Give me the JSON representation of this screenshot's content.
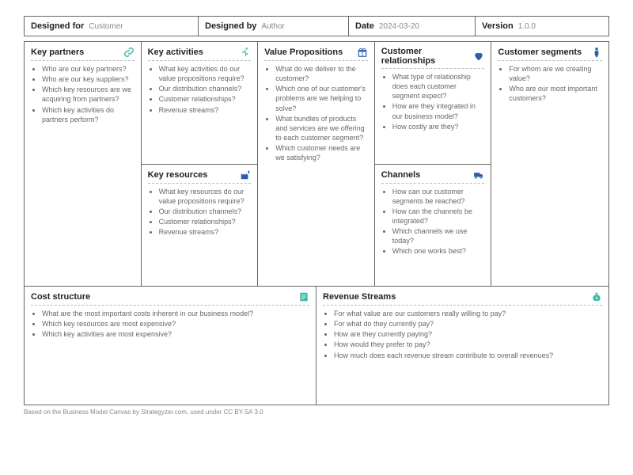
{
  "header": {
    "designed_for_label": "Designed for",
    "designed_for_value": "Customer",
    "designed_by_label": "Designed by",
    "designed_by_value": "Author",
    "date_label": "Date",
    "date_value": "2024-03-20",
    "version_label": "Version",
    "version_value": "1.0.0"
  },
  "colors": {
    "teal": "#3bb8a7",
    "blue": "#2a5fa8",
    "text": "#333333",
    "muted": "#666666",
    "border": "#666666"
  },
  "cells": {
    "key_partners": {
      "title": "Key partners",
      "icon_color": "#3bb8a7",
      "items": [
        "Who are our key partners?",
        "Who are our key suppliers?",
        "Which key resources are we acquiring from partners?",
        "Which key activities do partners perform?"
      ]
    },
    "key_activities": {
      "title": "Key activities",
      "icon_color": "#3bb8a7",
      "items": [
        "What key activities do our value propositions require?",
        "Our distribution channels?",
        "Customer relationships?",
        "Revenue streams?"
      ]
    },
    "key_resources": {
      "title": "Key resources",
      "icon_color": "#2a5fa8",
      "items": [
        "What key resources do our value propositions require?",
        "Our distribution channels?",
        "Customer relationships?",
        "Revenue streams?"
      ]
    },
    "value_propositions": {
      "title": "Value Propositions",
      "icon_color": "#2a5fa8",
      "items": [
        "What do we deliver to the customer?",
        "Which one of our customer's problems are we helping to solve?",
        "What bundles of products and services are we offering to each customer segment?",
        "Which customer needs are we satisfying?"
      ]
    },
    "customer_relationships": {
      "title": "Customer relationships",
      "icon_color": "#2a5fa8",
      "items": [
        "What type of relationship does each customer segment expect?",
        "How are they integrated in our business model?",
        "How costly are they?"
      ]
    },
    "channels": {
      "title": "Channels",
      "icon_color": "#2a5fa8",
      "items": [
        "How can our customer segments be reached?",
        "How can the channels be integrated?",
        "Which channels we use today?",
        "Which one works best?"
      ]
    },
    "customer_segments": {
      "title": "Customer segments",
      "icon_color": "#2a5fa8",
      "items": [
        "For whom are we creating value?",
        "Who are our most important customers?"
      ]
    },
    "cost_structure": {
      "title": "Cost structure",
      "icon_color": "#3bb8a7",
      "items": [
        "What are the most important costs inherent in our business model?",
        "Which key resources are most expensive?",
        "Which key activities are most expensive?"
      ]
    },
    "revenue_streams": {
      "title": "Revenue Streams",
      "icon_color": "#3bb8a7",
      "items": [
        "For what value are our customers really willing to pay?",
        "For what do they currently pay?",
        "How are they currently paying?",
        "How would they prefer to pay?",
        "How much does each revenue stream contribute to overall revenues?"
      ]
    }
  },
  "footer": "Based on the Business Model Canvas by Strategyzer.com, used under CC BY-SA 3.0"
}
